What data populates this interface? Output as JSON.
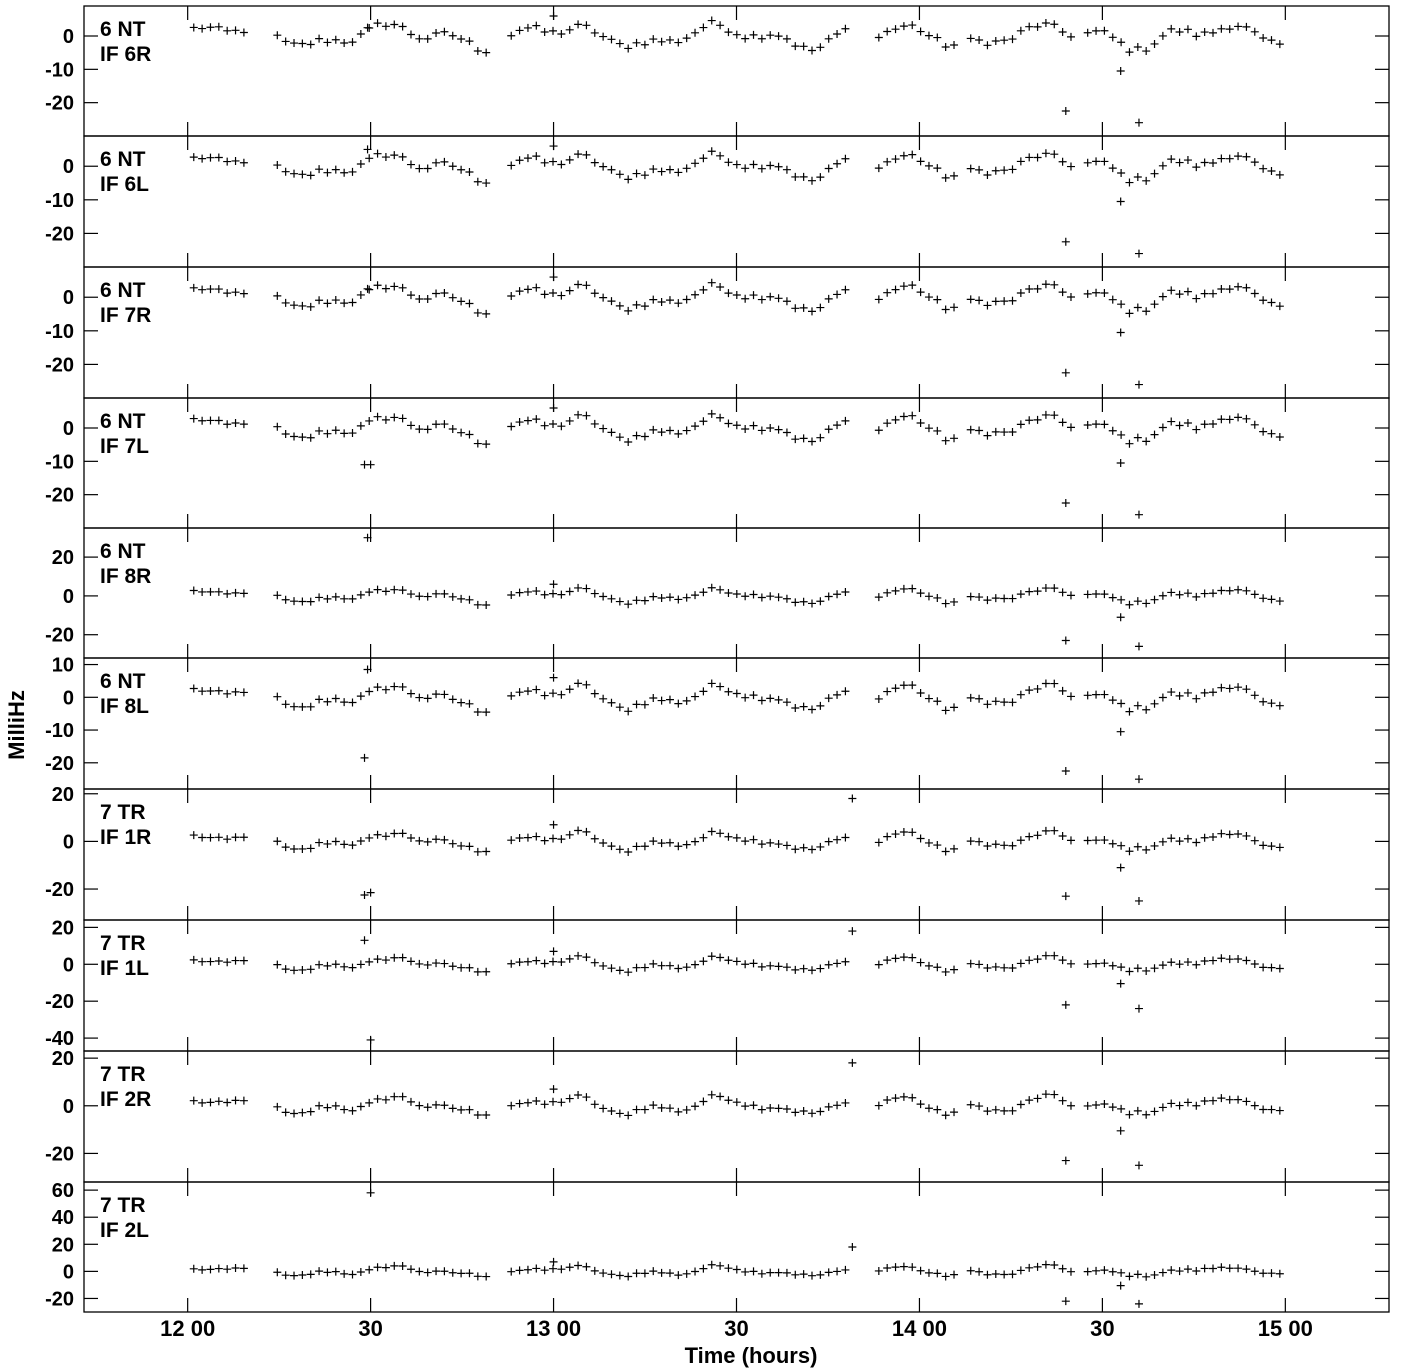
{
  "chart_data": {
    "type": "scatter",
    "xlabel": "Time (hours)",
    "ylabel": "MilliHz",
    "x_ticks": [
      {
        "t": 0,
        "label": "12 00"
      },
      {
        "t": 30,
        "label": "30"
      },
      {
        "t": 60,
        "label": "13 00"
      },
      {
        "t": 90,
        "label": "30"
      },
      {
        "t": 120,
        "label": "14 00"
      },
      {
        "t": 150,
        "label": "30"
      },
      {
        "t": 180,
        "label": "15 00"
      }
    ],
    "xlim_minutes_after_12": [
      -17,
      197
    ],
    "time_start_minutes": 1,
    "time_end_minutes": 180,
    "panels": [
      {
        "line1": "6 NT",
        "line2": "IF 6R",
        "ylim": [
          -30,
          9
        ],
        "yticks": [
          0,
          -10,
          -20
        ],
        "outliers": [
          {
            "t": 29.5,
            "v": 2.5
          },
          {
            "t": 60,
            "v": 6
          },
          {
            "t": 144,
            "v": -22.5
          },
          {
            "t": 153,
            "v": -10.5
          },
          {
            "t": 156,
            "v": -26
          }
        ]
      },
      {
        "line1": "6 NT",
        "line2": "IF 6L",
        "ylim": [
          -30,
          9
        ],
        "yticks": [
          0,
          -10,
          -20
        ],
        "outliers": [
          {
            "t": 29.5,
            "v": 5
          },
          {
            "t": 60,
            "v": 6
          },
          {
            "t": 144,
            "v": -22.5
          },
          {
            "t": 153,
            "v": -10.5
          },
          {
            "t": 156,
            "v": -26
          }
        ]
      },
      {
        "line1": "6 NT",
        "line2": "IF 7R",
        "ylim": [
          -30,
          9
        ],
        "yticks": [
          0,
          -10,
          -20
        ],
        "outliers": [
          {
            "t": 29.5,
            "v": 2.5
          },
          {
            "t": 60,
            "v": 6
          },
          {
            "t": 144,
            "v": -22.5
          },
          {
            "t": 153,
            "v": -10.5
          },
          {
            "t": 156,
            "v": -26
          }
        ]
      },
      {
        "line1": "6 NT",
        "line2": "IF 7L",
        "ylim": [
          -30,
          9
        ],
        "yticks": [
          0,
          -10,
          -20
        ],
        "outliers": [
          {
            "t": 29,
            "v": -11
          },
          {
            "t": 30,
            "v": -11
          },
          {
            "t": 60,
            "v": 6
          },
          {
            "t": 144,
            "v": -22.5
          },
          {
            "t": 153,
            "v": -10.5
          },
          {
            "t": 156,
            "v": -26
          }
        ]
      },
      {
        "line1": "6 NT",
        "line2": "IF 8R",
        "ylim": [
          -32,
          35
        ],
        "yticks": [
          20,
          0,
          -20
        ],
        "outliers": [
          {
            "t": 29.5,
            "v": 30
          },
          {
            "t": 60,
            "v": 6
          },
          {
            "t": 144,
            "v": -23
          },
          {
            "t": 153,
            "v": -11
          },
          {
            "t": 156,
            "v": -26
          }
        ]
      },
      {
        "line1": "6 NT",
        "line2": "IF 8L",
        "ylim": [
          -28,
          12
        ],
        "yticks": [
          10,
          0,
          -10,
          -20
        ],
        "outliers": [
          {
            "t": 29.5,
            "v": 8.5
          },
          {
            "t": 29,
            "v": -18.5
          },
          {
            "t": 60,
            "v": 6
          },
          {
            "t": 144,
            "v": -22.5
          },
          {
            "t": 153,
            "v": -10.5
          },
          {
            "t": 156,
            "v": -25
          }
        ]
      },
      {
        "line1": "7 TR",
        "line2": "IF 1R",
        "ylim": [
          -33,
          22
        ],
        "yticks": [
          20,
          0,
          -20
        ],
        "outliers": [
          {
            "t": 29,
            "v": -22.5
          },
          {
            "t": 30,
            "v": -21.5
          },
          {
            "t": 60,
            "v": 7
          },
          {
            "t": 109,
            "v": 18
          },
          {
            "t": 144,
            "v": -23
          },
          {
            "t": 153,
            "v": -11
          },
          {
            "t": 156,
            "v": -25
          }
        ]
      },
      {
        "line1": "7 TR",
        "line2": "IF 1L",
        "ylim": [
          -47,
          24
        ],
        "yticks": [
          20,
          0,
          -20,
          -40
        ],
        "outliers": [
          {
            "t": 29,
            "v": 13
          },
          {
            "t": 30,
            "v": -41
          },
          {
            "t": 60,
            "v": 7
          },
          {
            "t": 109,
            "v": 18
          },
          {
            "t": 144,
            "v": -22
          },
          {
            "t": 153,
            "v": -10.5
          },
          {
            "t": 156,
            "v": -24
          }
        ]
      },
      {
        "line1": "7 TR",
        "line2": "IF 2R",
        "ylim": [
          -32,
          23
        ],
        "yticks": [
          20,
          0,
          -20
        ],
        "outliers": [
          {
            "t": 60,
            "v": 7
          },
          {
            "t": 109,
            "v": 18
          },
          {
            "t": 144,
            "v": -23
          },
          {
            "t": 153,
            "v": -10.5
          },
          {
            "t": 156,
            "v": -25
          }
        ]
      },
      {
        "line1": "7 TR",
        "line2": "IF 2L",
        "ylim": [
          -30,
          66
        ],
        "yticks": [
          60,
          40,
          20,
          0,
          -20
        ],
        "outliers": [
          {
            "t": 30,
            "v": 58
          },
          {
            "t": 60,
            "v": 7
          },
          {
            "t": 109,
            "v": 18
          },
          {
            "t": 144,
            "v": -22
          },
          {
            "t": 153,
            "v": -10.5
          },
          {
            "t": 156,
            "v": -24
          }
        ]
      }
    ]
  }
}
